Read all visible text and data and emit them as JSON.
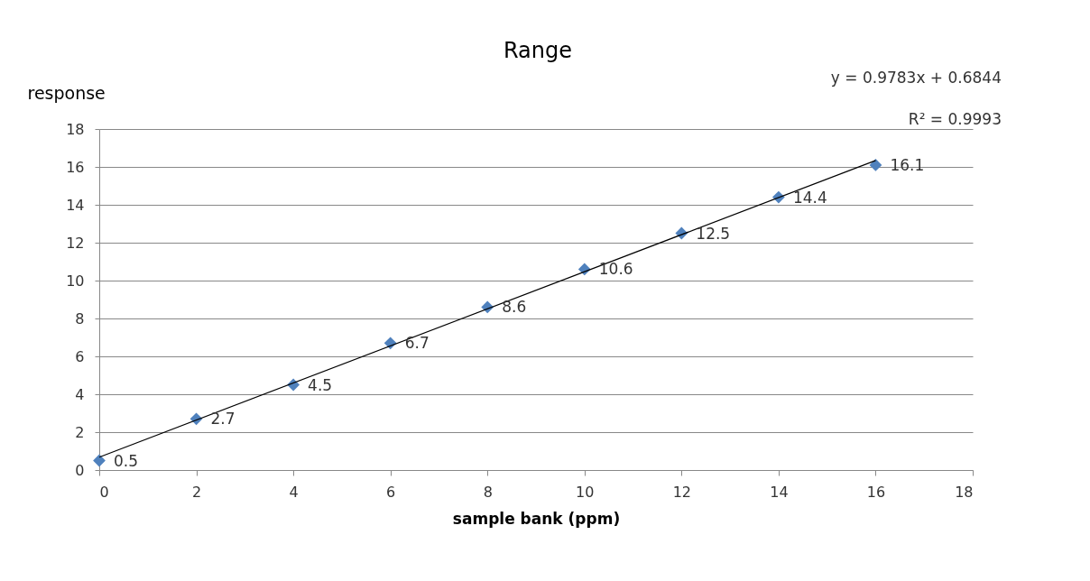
{
  "chart_data": {
    "type": "scatter",
    "title": "Range",
    "xlabel": "sample bank (ppm)",
    "ylabel": "response",
    "x": [
      0,
      2,
      4,
      6,
      8,
      10,
      12,
      14,
      16
    ],
    "series": [
      {
        "color": "#4f81bd",
        "values": [
          0.5,
          2.7,
          4.5,
          6.7,
          8.6,
          10.6,
          12.5,
          14.4,
          16.1
        ],
        "value_labels": [
          "0.5",
          "2.7",
          "4.5",
          "6.7",
          "8.6",
          "10.6",
          "12.5",
          "14.4",
          "16.1"
        ]
      },
      {
        "type": "line",
        "color": "#000000",
        "x": [
          0,
          16
        ],
        "values": [
          0.68,
          16.34
        ],
        "marker": "none"
      }
    ],
    "annotations": [
      "y = 0.9783x + 0.6844",
      "R² = 0.9993"
    ],
    "marker": "diamond",
    "grid": "y",
    "xlim": [
      0,
      18
    ],
    "xticks": [
      0,
      2,
      4,
      6,
      8,
      10,
      12,
      14,
      16,
      18
    ],
    "ylim": [
      0,
      18
    ],
    "yticks": [
      0,
      2,
      4,
      6,
      8,
      10,
      12,
      14,
      16,
      18
    ]
  }
}
